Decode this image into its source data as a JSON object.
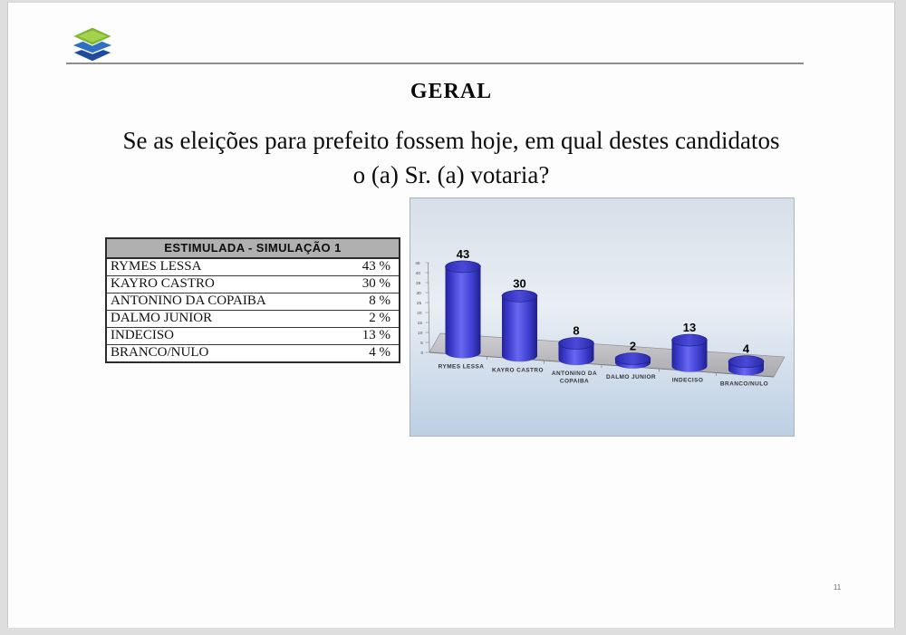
{
  "title": "GERAL",
  "question": {
    "line1": "Se as eleições para prefeito fossem hoje, em qual destes candidatos",
    "line2": "o (a) Sr. (a) votaria?"
  },
  "logo": {
    "name": "layered-diamonds-logo",
    "colors": {
      "top": "#7ab82c",
      "top_inner": "#a6d14f",
      "middle": "#2e6fc0",
      "bottom": "#1e4b9b"
    }
  },
  "table": {
    "header": "ESTIMULADA - SIMULAÇÃO 1",
    "rows": [
      {
        "label": "RYMES LESSA",
        "value": "43 %"
      },
      {
        "label": "KAYRO CASTRO",
        "value": "30 %"
      },
      {
        "label": "ANTONINO DA COPAIBA",
        "value": "8 %"
      },
      {
        "label": "DALMO JUNIOR",
        "value": "2 %"
      },
      {
        "label": "INDECISO",
        "value": "13 %"
      },
      {
        "label": "BRANCO/NULO",
        "value": "4 %"
      }
    ]
  },
  "chart_data": {
    "type": "bar",
    "style": "3d-cylinder",
    "title": "",
    "xlabel": "",
    "ylabel": "",
    "categories": [
      "RYMES LESSA",
      "KAYRO CASTRO",
      "ANTONINO DA COPAIBA",
      "DALMO JUNIOR",
      "INDECISO",
      "BRANCO/NULO"
    ],
    "values": [
      43,
      30,
      8,
      2,
      13,
      4
    ],
    "ylim": [
      0,
      45
    ],
    "yticks": [
      0,
      5,
      10,
      15,
      20,
      25,
      30,
      35,
      40,
      45
    ],
    "grid": false,
    "legend": false,
    "data_labels": true,
    "bar_color": "#3a3ad0",
    "background_color": "#dbe4ee",
    "floor_color": "#bfbfc3"
  },
  "page_number": "11"
}
